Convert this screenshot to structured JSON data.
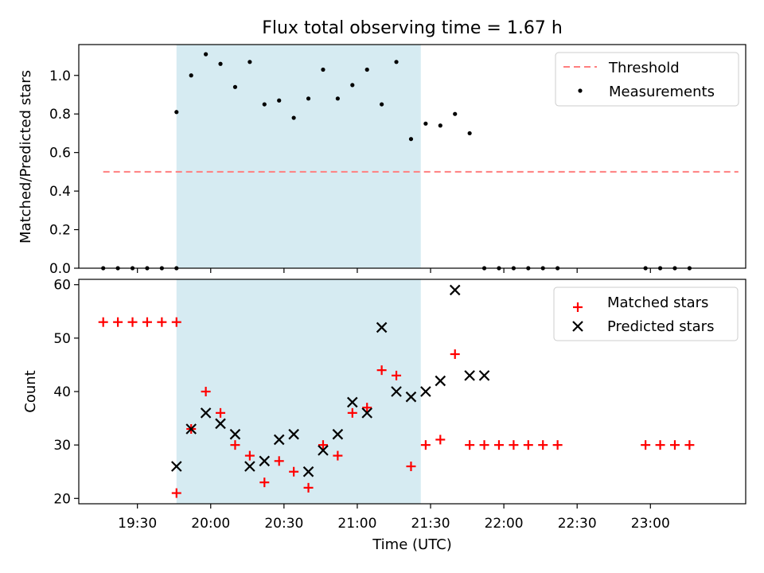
{
  "chart_data": [
    {
      "type": "scatter",
      "title": "Flux total observing time = 1.67 h",
      "xlabel": "",
      "ylabel": "Matched/Predicted stars",
      "ylim": [
        0,
        1.16
      ],
      "yticks": [
        "0.0",
        "0.2",
        "0.4",
        "0.6",
        "0.8",
        "1.0"
      ],
      "shaded_range": [
        "19:46",
        "21:26"
      ],
      "shade_color": "#add8e6",
      "legend_position": "top-right",
      "threshold": {
        "name": "Threshold",
        "value": 0.5,
        "x_range": [
          "19:16",
          "23:36"
        ],
        "color": "#ff7f7f"
      },
      "series": [
        {
          "name": "Measurements",
          "color": "#000000",
          "x": [
            "19:16",
            "19:22",
            "19:28",
            "19:34",
            "19:40",
            "19:46",
            "19:46",
            "19:52",
            "19:58",
            "20:04",
            "20:10",
            "20:16",
            "20:22",
            "20:28",
            "20:34",
            "20:40",
            "20:46",
            "20:52",
            "20:58",
            "21:04",
            "21:10",
            "21:16",
            "21:22",
            "21:28",
            "21:34",
            "21:40",
            "21:46",
            "21:52",
            "21:58",
            "22:04",
            "22:10",
            "22:16",
            "22:22",
            "22:58",
            "23:04",
            "23:10",
            "23:16"
          ],
          "values": [
            0,
            0,
            0,
            0,
            0,
            0,
            0.81,
            1.0,
            1.11,
            1.06,
            0.94,
            1.07,
            0.85,
            0.87,
            0.78,
            0.88,
            1.03,
            0.88,
            0.95,
            1.03,
            0.85,
            1.07,
            0.67,
            0.75,
            0.74,
            0.8,
            0.7,
            0,
            0,
            0,
            0,
            0,
            0,
            0,
            0,
            0,
            0
          ]
        }
      ]
    },
    {
      "type": "scatter",
      "title": "",
      "xlabel": "Time (UTC)",
      "ylabel": "Count",
      "ylim": [
        19,
        61
      ],
      "yticks": [
        "20",
        "30",
        "40",
        "50",
        "60"
      ],
      "xlim": [
        "19:06",
        "23:39"
      ],
      "xticks": [
        "19:30",
        "20:00",
        "20:30",
        "21:00",
        "21:30",
        "22:00",
        "22:30",
        "23:00"
      ],
      "shaded_range": [
        "19:46",
        "21:26"
      ],
      "shade_color": "#add8e6",
      "legend_position": "top-right",
      "series": [
        {
          "name": "Matched stars",
          "color": "#ff0000",
          "marker": "+",
          "x": [
            "19:16",
            "19:22",
            "19:28",
            "19:34",
            "19:40",
            "19:46",
            "19:46",
            "19:52",
            "19:58",
            "20:04",
            "20:10",
            "20:16",
            "20:22",
            "20:28",
            "20:34",
            "20:40",
            "20:46",
            "20:52",
            "20:58",
            "21:04",
            "21:10",
            "21:16",
            "21:22",
            "21:28",
            "21:34",
            "21:40",
            "21:46",
            "21:52",
            "21:58",
            "22:04",
            "22:10",
            "22:16",
            "22:22",
            "22:58",
            "23:04",
            "23:10",
            "23:16"
          ],
          "values": [
            53,
            53,
            53,
            53,
            53,
            53,
            21,
            33,
            40,
            36,
            30,
            28,
            23,
            27,
            25,
            22,
            30,
            28,
            36,
            37,
            44,
            43,
            26,
            30,
            31,
            47,
            30,
            30,
            30,
            30,
            30,
            30,
            30,
            30,
            30,
            30,
            30
          ]
        },
        {
          "name": "Predicted stars",
          "color": "#000000",
          "marker": "x",
          "x": [
            "19:46",
            "19:52",
            "19:58",
            "20:04",
            "20:10",
            "20:16",
            "20:22",
            "20:28",
            "20:34",
            "20:40",
            "20:46",
            "20:52",
            "20:58",
            "21:04",
            "21:10",
            "21:16",
            "21:22",
            "21:28",
            "21:34",
            "21:40",
            "21:46",
            "21:52"
          ],
          "values": [
            26,
            33,
            36,
            34,
            32,
            26,
            27,
            31,
            32,
            25,
            29,
            32,
            38,
            36,
            52,
            40,
            39,
            40,
            42,
            59,
            43,
            43
          ]
        }
      ]
    }
  ]
}
